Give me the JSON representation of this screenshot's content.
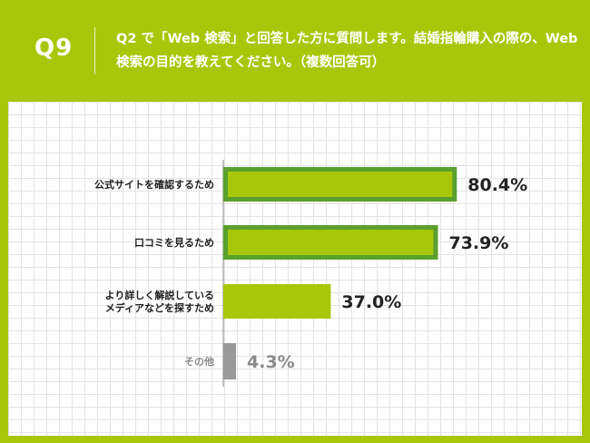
{
  "header": {
    "question_number": "Q9",
    "question_text": "Q2 で「Web 検索」と回答した方に質問します。結婚指輪購入の際の、Web 検索の目的を教えてください。（複数回答可）"
  },
  "colors": {
    "background": "#a8c70a",
    "bar_fill": "#a8c70a",
    "bar_highlight_border": "#5aa02e",
    "other_bar": "#999999",
    "other_text": "#8a8a8a",
    "value_text": "#222222"
  },
  "chart_data": {
    "type": "bar",
    "orientation": "horizontal",
    "categories": [
      [
        "公式サイトを確認するため"
      ],
      [
        "口コミを見るため"
      ],
      [
        "より詳しく解説している",
        "メディアなどを探すため"
      ],
      [
        "その他"
      ]
    ],
    "values": [
      80.4,
      73.9,
      37.0,
      4.3
    ],
    "value_labels": [
      "80.4%",
      "73.9%",
      "37.0%",
      "4.3%"
    ],
    "highlighted": [
      true,
      true,
      false,
      false
    ],
    "xlim": [
      0,
      100
    ],
    "grid": true
  }
}
